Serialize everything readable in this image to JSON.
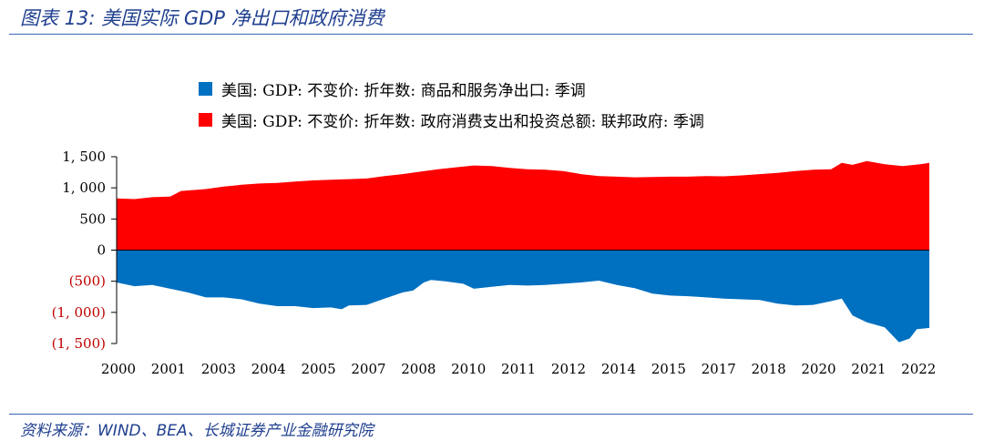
{
  "header": {
    "title": "图表 13:  美国实际 GDP 净出口和政府消费"
  },
  "footer": {
    "source": "资料来源：WIND、BEA、长城证券产业金融研究院"
  },
  "chart_data": {
    "type": "area",
    "title": "图表 13:  美国实际 GDP 净出口和政府消费",
    "xlabel": "",
    "ylabel": "",
    "ylim": [
      -1500,
      1500
    ],
    "yticks": [
      {
        "value": 1500,
        "label": "1, 500"
      },
      {
        "value": 1000,
        "label": "1, 000"
      },
      {
        "value": 500,
        "label": "500"
      },
      {
        "value": 0,
        "label": "0"
      },
      {
        "value": -500,
        "label": "(500)"
      },
      {
        "value": -1000,
        "label": "(1, 000)"
      },
      {
        "value": -1500,
        "label": "(1, 500)"
      }
    ],
    "xlim": [
      2000.0,
      2022.75
    ],
    "xticks": [
      {
        "value": 2000.0,
        "label": "2000"
      },
      {
        "value": 2001.4,
        "label": "2001"
      },
      {
        "value": 2002.8,
        "label": "2003"
      },
      {
        "value": 2004.2,
        "label": "2004"
      },
      {
        "value": 2005.6,
        "label": "2005"
      },
      {
        "value": 2007.0,
        "label": "2007"
      },
      {
        "value": 2008.4,
        "label": "2008"
      },
      {
        "value": 2009.8,
        "label": "2010"
      },
      {
        "value": 2011.2,
        "label": "2011"
      },
      {
        "value": 2012.6,
        "label": "2012"
      },
      {
        "value": 2014.0,
        "label": "2014"
      },
      {
        "value": 2015.4,
        "label": "2015"
      },
      {
        "value": 2016.8,
        "label": "2017"
      },
      {
        "value": 2018.2,
        "label": "2018"
      },
      {
        "value": 2019.6,
        "label": "2020"
      },
      {
        "value": 2021.0,
        "label": "2021"
      },
      {
        "value": 2022.4,
        "label": "2022"
      }
    ],
    "series": [
      {
        "name": "美国: GDP: 不变价: 折年数: 商品和服务净出口: 季调",
        "color": "#0070C0",
        "points": [
          [
            2000.0,
            -520
          ],
          [
            2000.5,
            -580
          ],
          [
            2001.0,
            -560
          ],
          [
            2001.5,
            -620
          ],
          [
            2002.0,
            -680
          ],
          [
            2002.5,
            -760
          ],
          [
            2003.0,
            -760
          ],
          [
            2003.5,
            -790
          ],
          [
            2004.0,
            -860
          ],
          [
            2004.5,
            -900
          ],
          [
            2005.0,
            -900
          ],
          [
            2005.5,
            -930
          ],
          [
            2006.0,
            -920
          ],
          [
            2006.3,
            -950
          ],
          [
            2006.5,
            -890
          ],
          [
            2007.0,
            -880
          ],
          [
            2007.5,
            -780
          ],
          [
            2008.0,
            -680
          ],
          [
            2008.3,
            -650
          ],
          [
            2008.6,
            -520
          ],
          [
            2008.8,
            -480
          ],
          [
            2009.2,
            -500
          ],
          [
            2009.7,
            -540
          ],
          [
            2010.0,
            -620
          ],
          [
            2010.5,
            -590
          ],
          [
            2011.0,
            -560
          ],
          [
            2011.5,
            -570
          ],
          [
            2012.0,
            -560
          ],
          [
            2012.5,
            -540
          ],
          [
            2013.0,
            -520
          ],
          [
            2013.5,
            -490
          ],
          [
            2014.0,
            -560
          ],
          [
            2014.5,
            -610
          ],
          [
            2015.0,
            -700
          ],
          [
            2015.5,
            -730
          ],
          [
            2016.0,
            -740
          ],
          [
            2016.5,
            -760
          ],
          [
            2017.0,
            -780
          ],
          [
            2017.5,
            -790
          ],
          [
            2018.0,
            -800
          ],
          [
            2018.5,
            -860
          ],
          [
            2019.0,
            -890
          ],
          [
            2019.5,
            -880
          ],
          [
            2020.0,
            -820
          ],
          [
            2020.3,
            -780
          ],
          [
            2020.6,
            -1050
          ],
          [
            2021.0,
            -1160
          ],
          [
            2021.5,
            -1240
          ],
          [
            2021.9,
            -1480
          ],
          [
            2022.2,
            -1420
          ],
          [
            2022.4,
            -1270
          ],
          [
            2022.75,
            -1250
          ]
        ]
      },
      {
        "name": "美国: GDP: 不变价: 折年数: 政府消费支出和投资总额: 联邦政府: 季调",
        "color": "#FF0000",
        "points": [
          [
            2000.0,
            830
          ],
          [
            2000.5,
            820
          ],
          [
            2001.0,
            850
          ],
          [
            2001.5,
            860
          ],
          [
            2001.8,
            950
          ],
          [
            2002.5,
            980
          ],
          [
            2003.0,
            1020
          ],
          [
            2003.5,
            1050
          ],
          [
            2004.0,
            1070
          ],
          [
            2004.5,
            1080
          ],
          [
            2005.0,
            1100
          ],
          [
            2005.5,
            1120
          ],
          [
            2006.0,
            1130
          ],
          [
            2006.5,
            1140
          ],
          [
            2007.0,
            1150
          ],
          [
            2007.5,
            1190
          ],
          [
            2008.0,
            1220
          ],
          [
            2008.5,
            1260
          ],
          [
            2009.0,
            1300
          ],
          [
            2009.5,
            1330
          ],
          [
            2010.0,
            1360
          ],
          [
            2010.5,
            1350
          ],
          [
            2011.0,
            1320
          ],
          [
            2011.5,
            1300
          ],
          [
            2012.0,
            1290
          ],
          [
            2012.5,
            1270
          ],
          [
            2013.0,
            1220
          ],
          [
            2013.5,
            1190
          ],
          [
            2014.0,
            1180
          ],
          [
            2014.5,
            1170
          ],
          [
            2015.0,
            1175
          ],
          [
            2015.5,
            1180
          ],
          [
            2016.0,
            1180
          ],
          [
            2016.5,
            1190
          ],
          [
            2017.0,
            1185
          ],
          [
            2017.5,
            1200
          ],
          [
            2018.0,
            1220
          ],
          [
            2018.5,
            1240
          ],
          [
            2019.0,
            1270
          ],
          [
            2019.5,
            1290
          ],
          [
            2020.0,
            1300
          ],
          [
            2020.3,
            1400
          ],
          [
            2020.6,
            1370
          ],
          [
            2021.0,
            1430
          ],
          [
            2021.5,
            1380
          ],
          [
            2022.0,
            1350
          ],
          [
            2022.5,
            1380
          ],
          [
            2022.75,
            1400
          ]
        ]
      }
    ],
    "colors": {
      "axis_text_positive": "#000000",
      "axis_text_negative": "#C00000",
      "axis_line": "#000000"
    }
  }
}
